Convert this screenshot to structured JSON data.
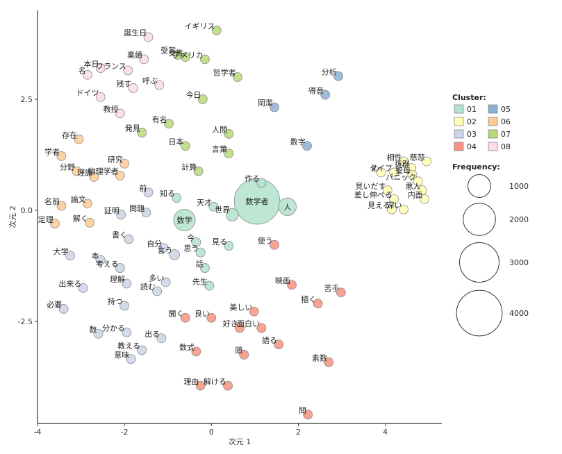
{
  "chart_data": {
    "type": "scatter",
    "xlabel": "次元 1",
    "ylabel": "次元 2",
    "xlim": [
      -4,
      5.3
    ],
    "ylim": [
      -4.8,
      4.5
    ],
    "xticks": [
      -4,
      -2,
      0,
      2,
      4
    ],
    "yticks": [
      2.5,
      0.0,
      -2.5,
      -5
    ],
    "ytick_labels": [
      "2.5",
      "0.0",
      "-2.5",
      ""
    ],
    "grid": false,
    "legend_position": "right",
    "cluster_legend": {
      "title": "Cluster:",
      "entries": [
        {
          "name": "01",
          "color": "#B3E2CD"
        },
        {
          "name": "02",
          "color": "#FFFFB3"
        },
        {
          "name": "03",
          "color": "#CBD5E8"
        },
        {
          "name": "04",
          "color": "#F8917F"
        },
        {
          "name": "05",
          "color": "#8DAFD3"
        },
        {
          "name": "06",
          "color": "#FDCB94"
        },
        {
          "name": "07",
          "color": "#B6D978"
        },
        {
          "name": "08",
          "color": "#FCDAE9"
        }
      ]
    },
    "size_legend": {
      "title": "Frequency:",
      "entries": [
        {
          "label": "1000",
          "value": 1000
        },
        {
          "label": "2000",
          "value": 2000
        },
        {
          "label": "3000",
          "value": 3000
        },
        {
          "label": "4000",
          "value": 4000
        }
      ]
    },
    "points": [
      {
        "label": "誕生日",
        "x": -1.45,
        "y": 3.9,
        "cluster": "08",
        "freq": 60
      },
      {
        "label": "イギリス",
        "x": 0.12,
        "y": 4.05,
        "cluster": "07",
        "freq": 60
      },
      {
        "label": "受賞",
        "x": -0.78,
        "y": 3.5,
        "cluster": "07",
        "freq": 70
      },
      {
        "label": "業績",
        "x": -1.55,
        "y": 3.4,
        "cluster": "08",
        "freq": 60
      },
      {
        "label": "女性",
        "x": -0.6,
        "y": 3.45,
        "cluster": "07",
        "freq": 70
      },
      {
        "label": "アメリカ",
        "x": -0.15,
        "y": 3.4,
        "cluster": "07",
        "freq": 60
      },
      {
        "label": "本日",
        "x": -2.55,
        "y": 3.2,
        "cluster": "08",
        "freq": 60
      },
      {
        "label": "名",
        "x": -2.85,
        "y": 3.05,
        "cluster": "08",
        "freq": 60
      },
      {
        "label": "フランス",
        "x": -1.92,
        "y": 3.15,
        "cluster": "08",
        "freq": 140
      },
      {
        "label": "哲学者",
        "x": 0.6,
        "y": 3.0,
        "cluster": "07",
        "freq": 120
      },
      {
        "label": "分析",
        "x": 2.92,
        "y": 3.02,
        "cluster": "05",
        "freq": 60
      },
      {
        "label": "呼ぶ",
        "x": -1.2,
        "y": 2.82,
        "cluster": "08",
        "freq": 60
      },
      {
        "label": "残す",
        "x": -1.8,
        "y": 2.75,
        "cluster": "08",
        "freq": 60
      },
      {
        "label": "得意",
        "x": 2.62,
        "y": 2.6,
        "cluster": "05",
        "freq": 60
      },
      {
        "label": "ドイツ",
        "x": -2.55,
        "y": 2.55,
        "cluster": "08",
        "freq": 60
      },
      {
        "label": "今日",
        "x": -0.2,
        "y": 2.5,
        "cluster": "07",
        "freq": 80
      },
      {
        "label": "教授",
        "x": -2.1,
        "y": 2.18,
        "cluster": "08",
        "freq": 60
      },
      {
        "label": "岡潔",
        "x": 1.45,
        "y": 2.32,
        "cluster": "05",
        "freq": 60
      },
      {
        "label": "有名",
        "x": -0.98,
        "y": 1.95,
        "cluster": "07",
        "freq": 70
      },
      {
        "label": "存在",
        "x": -3.05,
        "y": 1.6,
        "cluster": "06",
        "freq": 60
      },
      {
        "label": "発見",
        "x": -1.6,
        "y": 1.75,
        "cluster": "07",
        "freq": 90
      },
      {
        "label": "人間",
        "x": 0.4,
        "y": 1.72,
        "cluster": "07",
        "freq": 70
      },
      {
        "label": "数字",
        "x": 2.2,
        "y": 1.45,
        "cluster": "05",
        "freq": 80
      },
      {
        "label": "学者",
        "x": -3.45,
        "y": 1.22,
        "cluster": "06",
        "freq": 70
      },
      {
        "label": "日本",
        "x": -0.6,
        "y": 1.45,
        "cluster": "07",
        "freq": 100
      },
      {
        "label": "言葉",
        "x": 0.4,
        "y": 1.28,
        "cluster": "07",
        "freq": 70
      },
      {
        "label": "研究",
        "x": -2.0,
        "y": 1.05,
        "cluster": "06",
        "freq": 80
      },
      {
        "label": "計算",
        "x": -0.3,
        "y": 0.88,
        "cluster": "07",
        "freq": 90
      },
      {
        "label": "分野",
        "x": -3.1,
        "y": 0.88,
        "cluster": "06",
        "freq": 60
      },
      {
        "label": "理論",
        "x": -2.7,
        "y": 0.75,
        "cluster": "06",
        "freq": 60
      },
      {
        "label": "物理学者",
        "x": -2.1,
        "y": 0.78,
        "cluster": "06",
        "freq": 100
      },
      {
        "label": "作る",
        "x": 1.15,
        "y": 0.62,
        "cluster": "01",
        "freq": 60
      },
      {
        "label": "相性",
        "x": 4.42,
        "y": 1.1,
        "cluster": "02",
        "freq": 60
      },
      {
        "label": "慈悲",
        "x": 4.95,
        "y": 1.1,
        "cluster": "02",
        "freq": 60
      },
      {
        "label": "抜群",
        "x": 4.6,
        "y": 0.95,
        "cluster": "02",
        "freq": 60
      },
      {
        "label": "タイプ",
        "x": 4.2,
        "y": 0.85,
        "cluster": "02",
        "freq": 70
      },
      {
        "label": "聖母",
        "x": 4.62,
        "y": 0.8,
        "cluster": "02",
        "freq": 60
      },
      {
        "label": "心",
        "x": 3.9,
        "y": 0.85,
        "cluster": "02",
        "freq": 90
      },
      {
        "label": "パニック",
        "x": 4.75,
        "y": 0.65,
        "cluster": "02",
        "freq": 100
      },
      {
        "label": "悪人",
        "x": 4.85,
        "y": 0.45,
        "cluster": "02",
        "freq": 60
      },
      {
        "label": "内面",
        "x": 4.9,
        "y": 0.25,
        "cluster": "02",
        "freq": 60
      },
      {
        "label": "見いだす",
        "x": 4.05,
        "y": 0.45,
        "cluster": "02",
        "freq": 60
      },
      {
        "label": "差し伸べる",
        "x": 4.2,
        "y": 0.25,
        "cluster": "02",
        "freq": 60
      },
      {
        "label": "見える",
        "x": 4.15,
        "y": 0.02,
        "cluster": "02",
        "freq": 60
      },
      {
        "label": "深い",
        "x": 4.42,
        "y": 0.02,
        "cluster": "02",
        "freq": 60
      },
      {
        "label": "前",
        "x": -1.45,
        "y": 0.4,
        "cluster": "03",
        "freq": 60
      },
      {
        "label": "知る",
        "x": -0.8,
        "y": 0.28,
        "cluster": "01",
        "freq": 90
      },
      {
        "label": "数学者",
        "x": 1.05,
        "y": 0.2,
        "cluster": "01",
        "freq": 4000
      },
      {
        "label": "名前",
        "x": -3.45,
        "y": 0.1,
        "cluster": "06",
        "freq": 60
      },
      {
        "label": "論文",
        "x": -2.85,
        "y": 0.15,
        "cluster": "06",
        "freq": 60
      },
      {
        "label": "天才",
        "x": 0.05,
        "y": 0.08,
        "cluster": "01",
        "freq": 100
      },
      {
        "label": "人",
        "x": 1.75,
        "y": 0.08,
        "cluster": "01",
        "freq": 600
      },
      {
        "label": "世界",
        "x": 0.48,
        "y": -0.1,
        "cluster": "01",
        "freq": 300
      },
      {
        "label": "解く",
        "x": -2.8,
        "y": -0.28,
        "cluster": "06",
        "freq": 60
      },
      {
        "label": "証明",
        "x": -2.08,
        "y": -0.1,
        "cluster": "03",
        "freq": 130
      },
      {
        "label": "問題",
        "x": -1.5,
        "y": -0.05,
        "cluster": "03",
        "freq": 100
      },
      {
        "label": "定理",
        "x": -3.6,
        "y": -0.3,
        "cluster": "06",
        "freq": 60
      },
      {
        "label": "数学",
        "x": -0.62,
        "y": -0.22,
        "cluster": "01",
        "freq": 900
      },
      {
        "label": "今",
        "x": -0.35,
        "y": -0.72,
        "cluster": "01",
        "freq": 70
      },
      {
        "label": "書く",
        "x": -1.9,
        "y": -0.65,
        "cluster": "03",
        "freq": 80
      },
      {
        "label": "見る",
        "x": 0.4,
        "y": -0.8,
        "cluster": "01",
        "freq": 110
      },
      {
        "label": "使う",
        "x": 1.45,
        "y": -0.78,
        "cluster": "04",
        "freq": 90
      },
      {
        "label": "自分",
        "x": -1.1,
        "y": -0.85,
        "cluster": "03",
        "freq": 110
      },
      {
        "label": "言う",
        "x": -0.85,
        "y": -1.0,
        "cluster": "03",
        "freq": 200
      },
      {
        "label": "思う",
        "x": -0.25,
        "y": -0.95,
        "cluster": "01",
        "freq": 160
      },
      {
        "label": "大学",
        "x": -3.25,
        "y": -1.02,
        "cluster": "03",
        "freq": 60
      },
      {
        "label": "本",
        "x": -2.55,
        "y": -1.12,
        "cluster": "03",
        "freq": 60
      },
      {
        "label": "考える",
        "x": -2.1,
        "y": -1.3,
        "cluster": "03",
        "freq": 80
      },
      {
        "label": "話",
        "x": -0.15,
        "y": -1.3,
        "cluster": "01",
        "freq": 100
      },
      {
        "label": "映画",
        "x": 1.85,
        "y": -1.68,
        "cluster": "04",
        "freq": 80
      },
      {
        "label": "出来る",
        "x": -2.95,
        "y": -1.75,
        "cluster": "03",
        "freq": 60
      },
      {
        "label": "理解",
        "x": -1.95,
        "y": -1.65,
        "cluster": "03",
        "freq": 60
      },
      {
        "label": "多い",
        "x": -1.05,
        "y": -1.62,
        "cluster": "03",
        "freq": 60
      },
      {
        "label": "先生",
        "x": -0.05,
        "y": -1.7,
        "cluster": "01",
        "freq": 100
      },
      {
        "label": "読む",
        "x": -1.25,
        "y": -1.82,
        "cluster": "03",
        "freq": 90
      },
      {
        "label": "描く",
        "x": 2.45,
        "y": -2.1,
        "cluster": "04",
        "freq": 60
      },
      {
        "label": "苦手",
        "x": 2.98,
        "y": -1.85,
        "cluster": "04",
        "freq": 60
      },
      {
        "label": "必要",
        "x": -3.4,
        "y": -2.22,
        "cluster": "03",
        "freq": 60
      },
      {
        "label": "持つ",
        "x": -2.0,
        "y": -2.15,
        "cluster": "03",
        "freq": 60
      },
      {
        "label": "美しい",
        "x": 0.98,
        "y": -2.28,
        "cluster": "04",
        "freq": 60
      },
      {
        "label": "聞く",
        "x": -0.6,
        "y": -2.42,
        "cluster": "04",
        "freq": 70
      },
      {
        "label": "良い",
        "x": 0.0,
        "y": -2.42,
        "cluster": "04",
        "freq": 70
      },
      {
        "label": "数",
        "x": -2.6,
        "y": -2.78,
        "cluster": "03",
        "freq": 60
      },
      {
        "label": "面白い",
        "x": 1.15,
        "y": -2.65,
        "cluster": "04",
        "freq": 60
      },
      {
        "label": "好き",
        "x": 0.65,
        "y": -2.65,
        "cluster": "04",
        "freq": 70
      },
      {
        "label": "分かる",
        "x": -1.95,
        "y": -2.75,
        "cluster": "03",
        "freq": 70
      },
      {
        "label": "出る",
        "x": -1.15,
        "y": -2.88,
        "cluster": "03",
        "freq": 60
      },
      {
        "label": "数式",
        "x": -0.35,
        "y": -3.18,
        "cluster": "04",
        "freq": 60
      },
      {
        "label": "語る",
        "x": 1.55,
        "y": -3.02,
        "cluster": "04",
        "freq": 60
      },
      {
        "label": "教える",
        "x": -1.6,
        "y": -3.15,
        "cluster": "03",
        "freq": 60
      },
      {
        "label": "頭",
        "x": 0.75,
        "y": -3.25,
        "cluster": "04",
        "freq": 60
      },
      {
        "label": "素数",
        "x": 2.7,
        "y": -3.42,
        "cluster": "04",
        "freq": 60
      },
      {
        "label": "意味",
        "x": -1.85,
        "y": -3.35,
        "cluster": "03",
        "freq": 60
      },
      {
        "label": "理由",
        "x": -0.25,
        "y": -3.95,
        "cluster": "04",
        "freq": 60
      },
      {
        "label": "解ける",
        "x": 0.38,
        "y": -3.95,
        "cluster": "04",
        "freq": 60
      },
      {
        "label": "問",
        "x": 2.22,
        "y": -4.6,
        "cluster": "04",
        "freq": 60
      }
    ]
  }
}
